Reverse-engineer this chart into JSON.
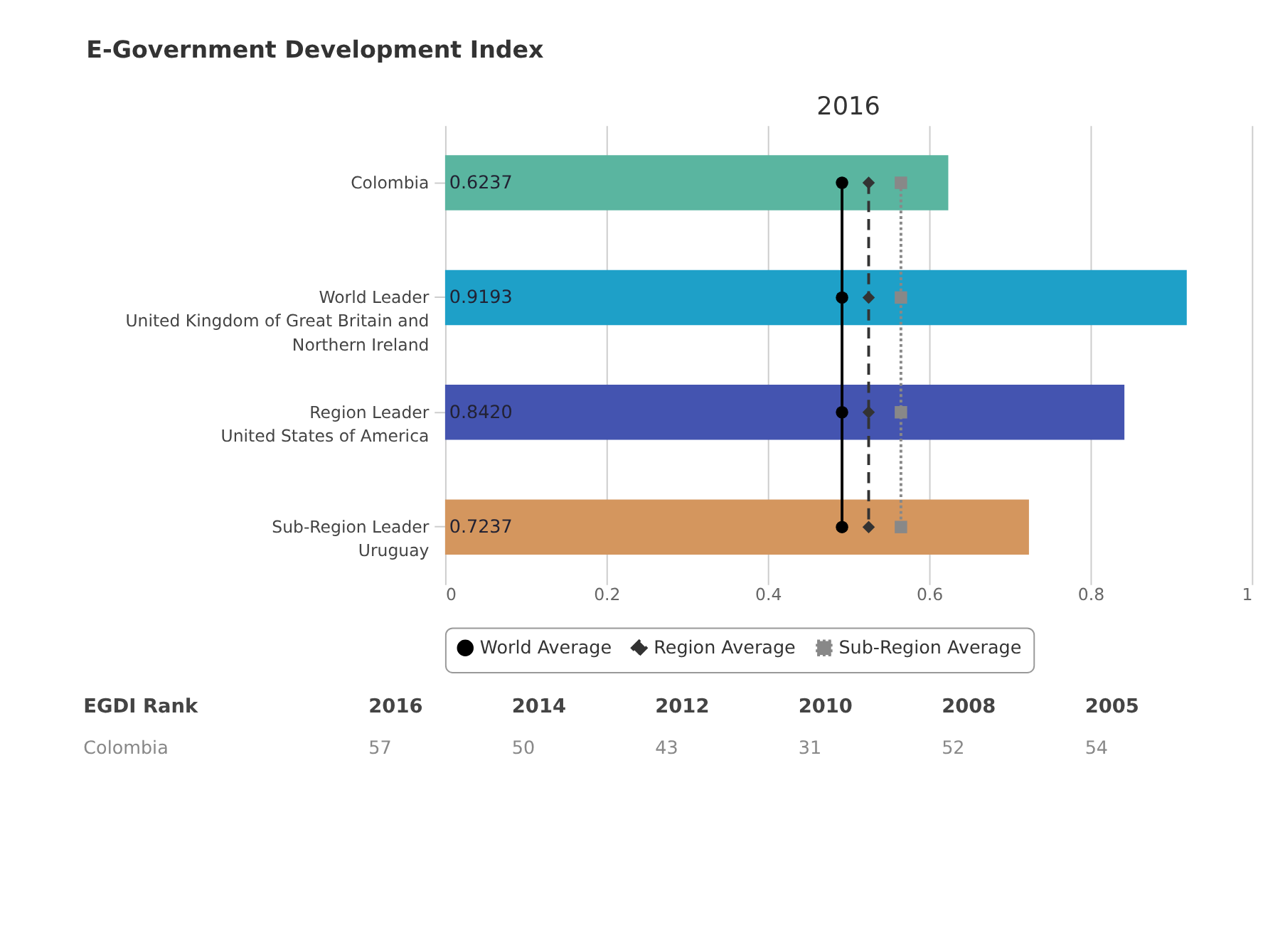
{
  "chart_data": {
    "type": "bar",
    "orientation": "horizontal",
    "title": "E-Government Development Index",
    "subtitle": "2016",
    "categories": [
      "Colombia",
      "World Leader\nUnited Kingdom of Great Britain and\nNorthern Ireland",
      "Region Leader\nUnited States of America",
      "Sub-Region Leader\nUruguay"
    ],
    "values": [
      0.6237,
      0.9193,
      0.842,
      0.7237
    ],
    "colors": [
      "#5ab5a0",
      "#1ea0c8",
      "#4454b0",
      "#d4965e"
    ],
    "value_labels": [
      "0.6237",
      "0.9193",
      "0.8420",
      "0.7237"
    ],
    "series": [
      {
        "name": "World Average",
        "type": "line",
        "color": "#000000",
        "marker": "circle",
        "line_style": "solid",
        "values": [
          0.492,
          0.492,
          0.492,
          0.492
        ]
      },
      {
        "name": "Region Average",
        "type": "line",
        "color": "#333333",
        "marker": "diamond",
        "line_style": "dashed",
        "values": [
          0.525,
          0.525,
          0.525,
          0.525
        ]
      },
      {
        "name": "Sub-Region Average",
        "type": "line",
        "color": "#888888",
        "marker": "square",
        "line_style": "dotted",
        "values": [
          0.565,
          0.565,
          0.565,
          0.565
        ]
      }
    ],
    "xlim": [
      0,
      1
    ],
    "xticks": [
      0,
      0.2,
      0.4,
      0.6,
      0.8,
      1
    ],
    "grid": "x",
    "legend": "bottom",
    "annotations": [
      "EGDI Rank",
      "2016",
      "2014",
      "2012",
      "2010",
      "2008",
      "2005",
      "Colombia",
      "57",
      "50",
      "43",
      "31",
      "52",
      "54"
    ]
  }
}
